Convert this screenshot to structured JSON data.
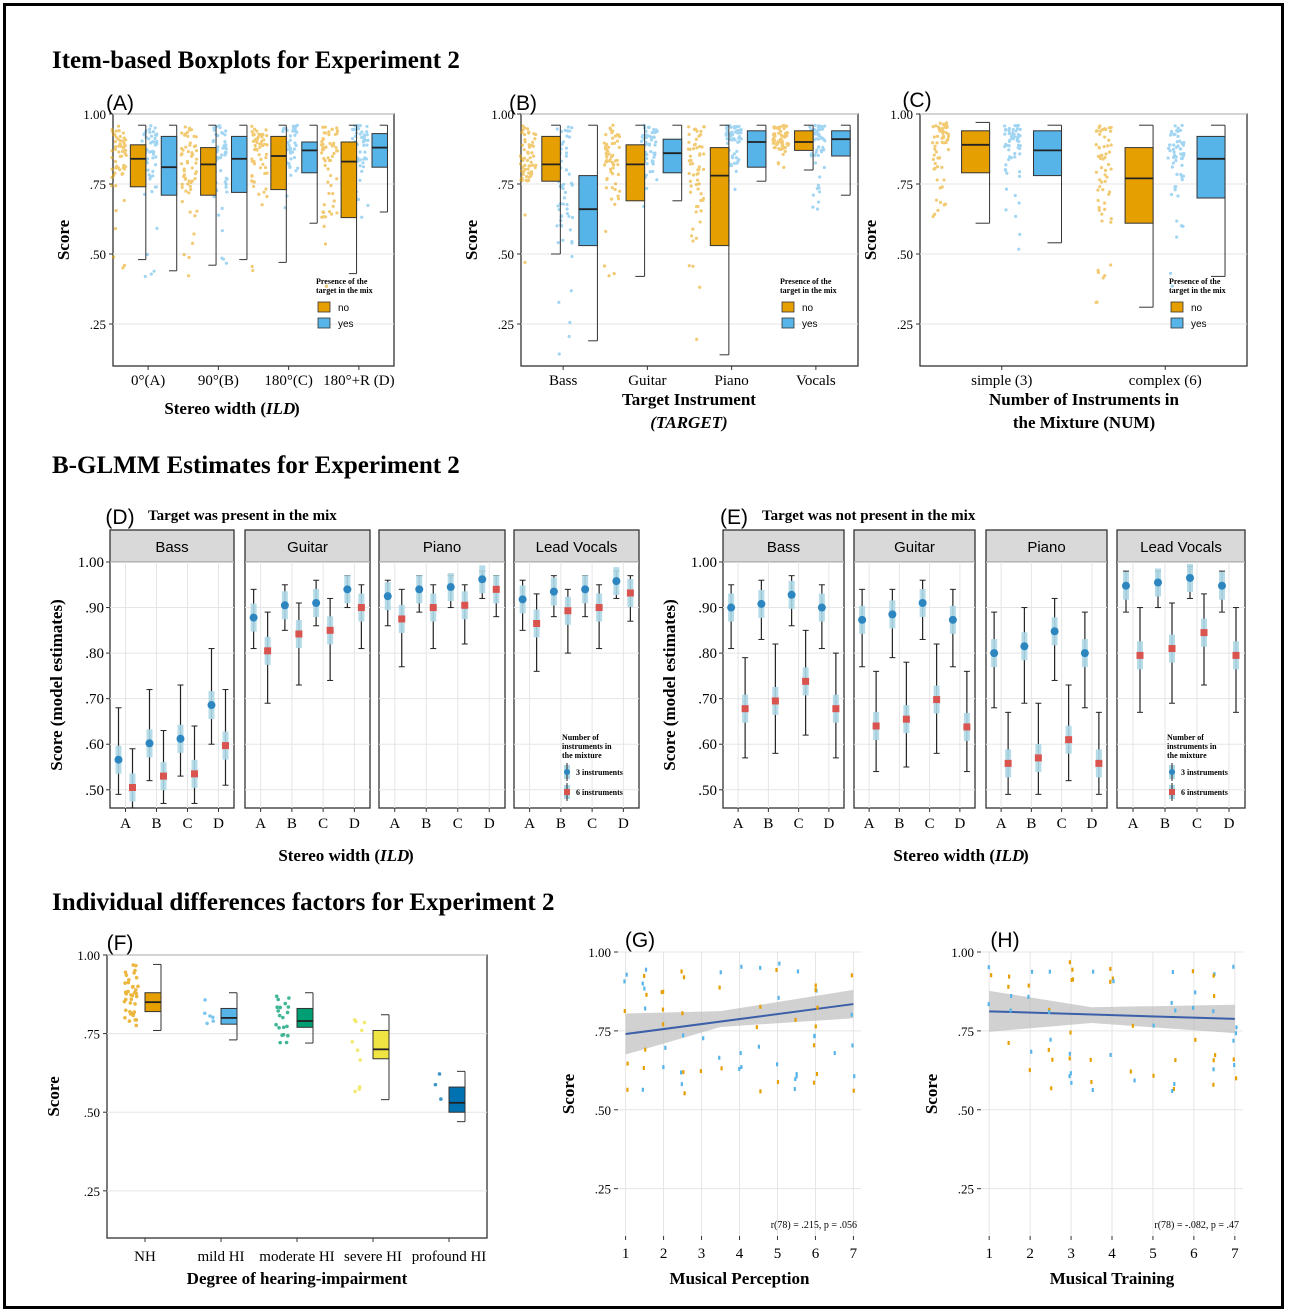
{
  "headings": {
    "top": "Item-based Boxplots for Experiment 2",
    "middle": "B-GLMM Estimates for Experiment 2",
    "bottom": "Individual differences factors for Experiment 2"
  },
  "colors": {
    "no": "#E69F00",
    "yes": "#56B4E9",
    "three": "#2E86C1",
    "six": "#D9534F",
    "grid": "#E5E5E5",
    "ci": "#ADD8E6"
  },
  "chart_data": [
    {
      "panel": "(A)",
      "type": "boxplot",
      "ylabel": "Score",
      "xlabel": "Stereo width (ILD)",
      "ylim": [
        0.1,
        1.0
      ],
      "yticks": [
        ".25",
        ".50",
        ".75",
        "1.00"
      ],
      "ytick_vals": [
        0.25,
        0.5,
        0.75,
        1.0
      ],
      "categories": [
        "0°(A)",
        "90°(B)",
        "180°(C)",
        "180°+R (D)"
      ],
      "legend": {
        "title": "Presence of the target in the mix",
        "items": [
          "no",
          "yes"
        ]
      },
      "series": [
        {
          "name": "no",
          "boxes": [
            [
              0.48,
              0.74,
              0.84,
              0.89,
              0.96
            ],
            [
              0.46,
              0.71,
              0.82,
              0.88,
              0.96
            ],
            [
              0.47,
              0.73,
              0.85,
              0.92,
              0.96
            ],
            [
              0.43,
              0.63,
              0.83,
              0.9,
              0.96
            ]
          ]
        },
        {
          "name": "yes",
          "boxes": [
            [
              0.44,
              0.71,
              0.81,
              0.92,
              0.96
            ],
            [
              0.48,
              0.72,
              0.84,
              0.92,
              0.96
            ],
            [
              0.61,
              0.79,
              0.87,
              0.9,
              0.96
            ],
            [
              0.65,
              0.81,
              0.88,
              0.93,
              0.96
            ]
          ]
        }
      ]
    },
    {
      "panel": "(B)",
      "type": "boxplot",
      "ylabel": "Score",
      "xlabel": "Target Instrument (TARGET)",
      "ylim": [
        0.1,
        1.0
      ],
      "yticks": [
        ".25",
        ".50",
        ".75",
        "1.00"
      ],
      "ytick_vals": [
        0.25,
        0.5,
        0.75,
        1.0
      ],
      "categories": [
        "Bass",
        "Guitar",
        "Piano",
        "Vocals"
      ],
      "legend": {
        "title": "Presence of the target in the mix",
        "items": [
          "no",
          "yes"
        ]
      },
      "series": [
        {
          "name": "no",
          "boxes": [
            [
              0.5,
              0.76,
              0.82,
              0.92,
              0.96
            ],
            [
              0.42,
              0.69,
              0.82,
              0.89,
              0.96
            ],
            [
              0.14,
              0.53,
              0.78,
              0.88,
              0.96
            ],
            [
              0.8,
              0.87,
              0.9,
              0.94,
              0.96
            ]
          ]
        },
        {
          "name": "yes",
          "boxes": [
            [
              0.19,
              0.53,
              0.66,
              0.78,
              0.96
            ],
            [
              0.69,
              0.79,
              0.86,
              0.91,
              0.96
            ],
            [
              0.76,
              0.81,
              0.9,
              0.94,
              0.96
            ],
            [
              0.71,
              0.85,
              0.91,
              0.94,
              0.96
            ]
          ]
        }
      ]
    },
    {
      "panel": "(C)",
      "type": "boxplot",
      "ylabel": "Score",
      "xlabel": "Number of Instruments in the Mixture (NUM)",
      "ylim": [
        0.1,
        1.0
      ],
      "yticks": [
        ".25",
        ".50",
        ".75",
        "1.00"
      ],
      "ytick_vals": [
        0.25,
        0.5,
        0.75,
        1.0
      ],
      "categories": [
        "simple (3)",
        "complex (6)"
      ],
      "legend": {
        "title": "Presence of the target in the mix",
        "items": [
          "no",
          "yes"
        ]
      },
      "series": [
        {
          "name": "no",
          "boxes": [
            [
              0.61,
              0.79,
              0.89,
              0.94,
              0.97
            ],
            [
              0.31,
              0.61,
              0.77,
              0.88,
              0.96
            ]
          ]
        },
        {
          "name": "yes",
          "boxes": [
            [
              0.54,
              0.78,
              0.87,
              0.94,
              0.96
            ],
            [
              0.42,
              0.7,
              0.84,
              0.92,
              0.96
            ]
          ]
        }
      ]
    },
    {
      "panel": "(D)",
      "type": "pointrange",
      "title": "Target was present in the mix",
      "ylabel": "Score (model estimates)",
      "xlabel": "Stereo width (ILD)",
      "ylim": [
        0.46,
        1.0
      ],
      "yticks": [
        ".50",
        ".60",
        ".70",
        ".80",
        ".90",
        "1.00"
      ],
      "ytick_vals": [
        0.5,
        0.6,
        0.7,
        0.8,
        0.9,
        1.0
      ],
      "facets": [
        "Bass",
        "Guitar",
        "Piano",
        "Lead Vocals"
      ],
      "categories": [
        "A",
        "B",
        "C",
        "D"
      ],
      "legend": {
        "title": "Number of instruments in the mixture",
        "items": [
          "3 instruments",
          "6 instruments"
        ]
      },
      "series": [
        {
          "name": "3 instruments",
          "values": [
            [
              0.566,
              0.602,
              0.612,
              0.686
            ],
            [
              0.878,
              0.905,
              0.91,
              0.94
            ],
            [
              0.925,
              0.94,
              0.945,
              0.962
            ],
            [
              0.918,
              0.935,
              0.94,
              0.958
            ]
          ],
          "ci": [
            [
              [
                0.49,
                0.68
              ],
              [
                0.52,
                0.72
              ],
              [
                0.53,
                0.73
              ],
              [
                0.6,
                0.81
              ]
            ],
            [
              [
                0.81,
                0.94
              ],
              [
                0.85,
                0.95
              ],
              [
                0.86,
                0.96
              ],
              [
                0.9,
                0.97
              ]
            ],
            [
              [
                0.86,
                0.96
              ],
              [
                0.89,
                0.97
              ],
              [
                0.9,
                0.97
              ],
              [
                0.92,
                0.98
              ]
            ],
            [
              [
                0.85,
                0.96
              ],
              [
                0.88,
                0.97
              ],
              [
                0.88,
                0.97
              ],
              [
                0.92,
                0.98
              ]
            ]
          ]
        },
        {
          "name": "6 instruments",
          "values": [
            [
              0.505,
              0.53,
              0.535,
              0.597
            ],
            [
              0.805,
              0.842,
              0.85,
              0.9
            ],
            [
              0.875,
              0.9,
              0.905,
              0.94
            ],
            [
              0.865,
              0.893,
              0.9,
              0.932
            ]
          ],
          "ci": [
            [
              [
                0.46,
                0.59
              ],
              [
                0.47,
                0.63
              ],
              [
                0.47,
                0.64
              ],
              [
                0.51,
                0.72
              ]
            ],
            [
              [
                0.69,
                0.89
              ],
              [
                0.73,
                0.91
              ],
              [
                0.74,
                0.92
              ],
              [
                0.81,
                0.95
              ]
            ],
            [
              [
                0.77,
                0.94
              ],
              [
                0.81,
                0.95
              ],
              [
                0.82,
                0.95
              ],
              [
                0.88,
                0.97
              ]
            ],
            [
              [
                0.76,
                0.93
              ],
              [
                0.8,
                0.94
              ],
              [
                0.81,
                0.95
              ],
              [
                0.87,
                0.97
              ]
            ]
          ]
        }
      ]
    },
    {
      "panel": "(E)",
      "type": "pointrange",
      "title": "Target was not present in the mix",
      "ylabel": "Score (model estimates)",
      "xlabel": "Stereo width (ILD)",
      "ylim": [
        0.46,
        1.0
      ],
      "yticks": [
        ".50",
        ".60",
        ".70",
        ".80",
        ".90",
        "1.00"
      ],
      "ytick_vals": [
        0.5,
        0.6,
        0.7,
        0.8,
        0.9,
        1.0
      ],
      "facets": [
        "Bass",
        "Guitar",
        "Piano",
        "Lead Vocals"
      ],
      "categories": [
        "A",
        "B",
        "C",
        "D"
      ],
      "legend": {
        "title": "Number of instruments in the mixture",
        "items": [
          "3 instruments",
          "6 instruments"
        ]
      },
      "series": [
        {
          "name": "3 instruments",
          "values": [
            [
              0.9,
              0.908,
              0.928,
              0.9
            ],
            [
              0.873,
              0.885,
              0.91,
              0.873
            ],
            [
              0.8,
              0.815,
              0.848,
              0.8
            ],
            [
              0.948,
              0.955,
              0.965,
              0.948
            ]
          ],
          "ci": [
            [
              [
                0.81,
                0.95
              ],
              [
                0.83,
                0.96
              ],
              [
                0.86,
                0.97
              ],
              [
                0.81,
                0.95
              ]
            ],
            [
              [
                0.77,
                0.94
              ],
              [
                0.79,
                0.94
              ],
              [
                0.83,
                0.96
              ],
              [
                0.77,
                0.94
              ]
            ],
            [
              [
                0.68,
                0.89
              ],
              [
                0.69,
                0.9
              ],
              [
                0.74,
                0.92
              ],
              [
                0.68,
                0.89
              ]
            ],
            [
              [
                0.89,
                0.98
              ],
              [
                0.9,
                0.98
              ],
              [
                0.92,
                0.99
              ],
              [
                0.89,
                0.98
              ]
            ]
          ]
        },
        {
          "name": "6 instruments",
          "values": [
            [
              0.678,
              0.695,
              0.738,
              0.678
            ],
            [
              0.64,
              0.655,
              0.698,
              0.638
            ],
            [
              0.558,
              0.57,
              0.61,
              0.558
            ],
            [
              0.795,
              0.81,
              0.845,
              0.795
            ]
          ],
          "ci": [
            [
              [
                0.57,
                0.79
              ],
              [
                0.58,
                0.82
              ],
              [
                0.62,
                0.85
              ],
              [
                0.57,
                0.8
              ]
            ],
            [
              [
                0.54,
                0.76
              ],
              [
                0.55,
                0.78
              ],
              [
                0.58,
                0.82
              ],
              [
                0.54,
                0.76
              ]
            ],
            [
              [
                0.49,
                0.67
              ],
              [
                0.49,
                0.69
              ],
              [
                0.52,
                0.73
              ],
              [
                0.49,
                0.67
              ]
            ],
            [
              [
                0.67,
                0.9
              ],
              [
                0.69,
                0.91
              ],
              [
                0.73,
                0.93
              ],
              [
                0.67,
                0.9
              ]
            ]
          ]
        }
      ]
    },
    {
      "panel": "(F)",
      "type": "boxplot",
      "ylabel": "Score",
      "xlabel": "Degree of hearing-impairment",
      "ylim": [
        0.1,
        1.0
      ],
      "yticks": [
        ".25",
        ".50",
        ".75",
        "1.00"
      ],
      "ytick_vals": [
        0.25,
        0.5,
        0.75,
        1.0
      ],
      "categories": [
        "NH",
        "mild HI",
        "moderate HI",
        "severe HI",
        "profound HI"
      ],
      "group_colors": [
        "#E69F00",
        "#56B4E9",
        "#009E73",
        "#F0E442",
        "#0072B2"
      ],
      "boxes": [
        [
          0.76,
          0.82,
          0.85,
          0.88,
          0.97
        ],
        [
          0.73,
          0.78,
          0.8,
          0.83,
          0.88
        ],
        [
          0.72,
          0.77,
          0.79,
          0.83,
          0.88
        ],
        [
          0.54,
          0.67,
          0.7,
          0.76,
          0.81
        ],
        [
          0.47,
          0.5,
          0.53,
          0.58,
          0.63
        ]
      ]
    },
    {
      "panel": "(G)",
      "type": "scatter",
      "ylabel": "Score",
      "xlabel": "Musical Perception",
      "xlim": [
        0.8,
        7.2
      ],
      "ylim": [
        0.1,
        1.0
      ],
      "xticks": [
        "1",
        "2",
        "3",
        "4",
        "5",
        "6",
        "7"
      ],
      "xtick_vals": [
        1,
        2,
        3,
        4,
        5,
        6,
        7
      ],
      "yticks": [
        ".25",
        ".50",
        ".75",
        "1.00"
      ],
      "ytick_vals": [
        0.25,
        0.5,
        0.75,
        1.0
      ],
      "fit": {
        "x": [
          1,
          7
        ],
        "y": [
          0.74,
          0.835
        ]
      },
      "annotation": "r(78) = .215, p = .056"
    },
    {
      "panel": "(H)",
      "type": "scatter",
      "ylabel": "Score",
      "xlabel": "Musical Training",
      "xlim": [
        0.8,
        7.2
      ],
      "ylim": [
        0.1,
        1.0
      ],
      "xticks": [
        "1",
        "2",
        "3",
        "4",
        "5",
        "6",
        "7"
      ],
      "xtick_vals": [
        1,
        2,
        3,
        4,
        5,
        6,
        7
      ],
      "yticks": [
        ".25",
        ".50",
        ".75",
        "1.00"
      ],
      "ytick_vals": [
        0.25,
        0.5,
        0.75,
        1.0
      ],
      "fit": {
        "x": [
          1,
          7
        ],
        "y": [
          0.812,
          0.788
        ]
      },
      "annotation": "r(78) = -.082, p = .47"
    }
  ]
}
